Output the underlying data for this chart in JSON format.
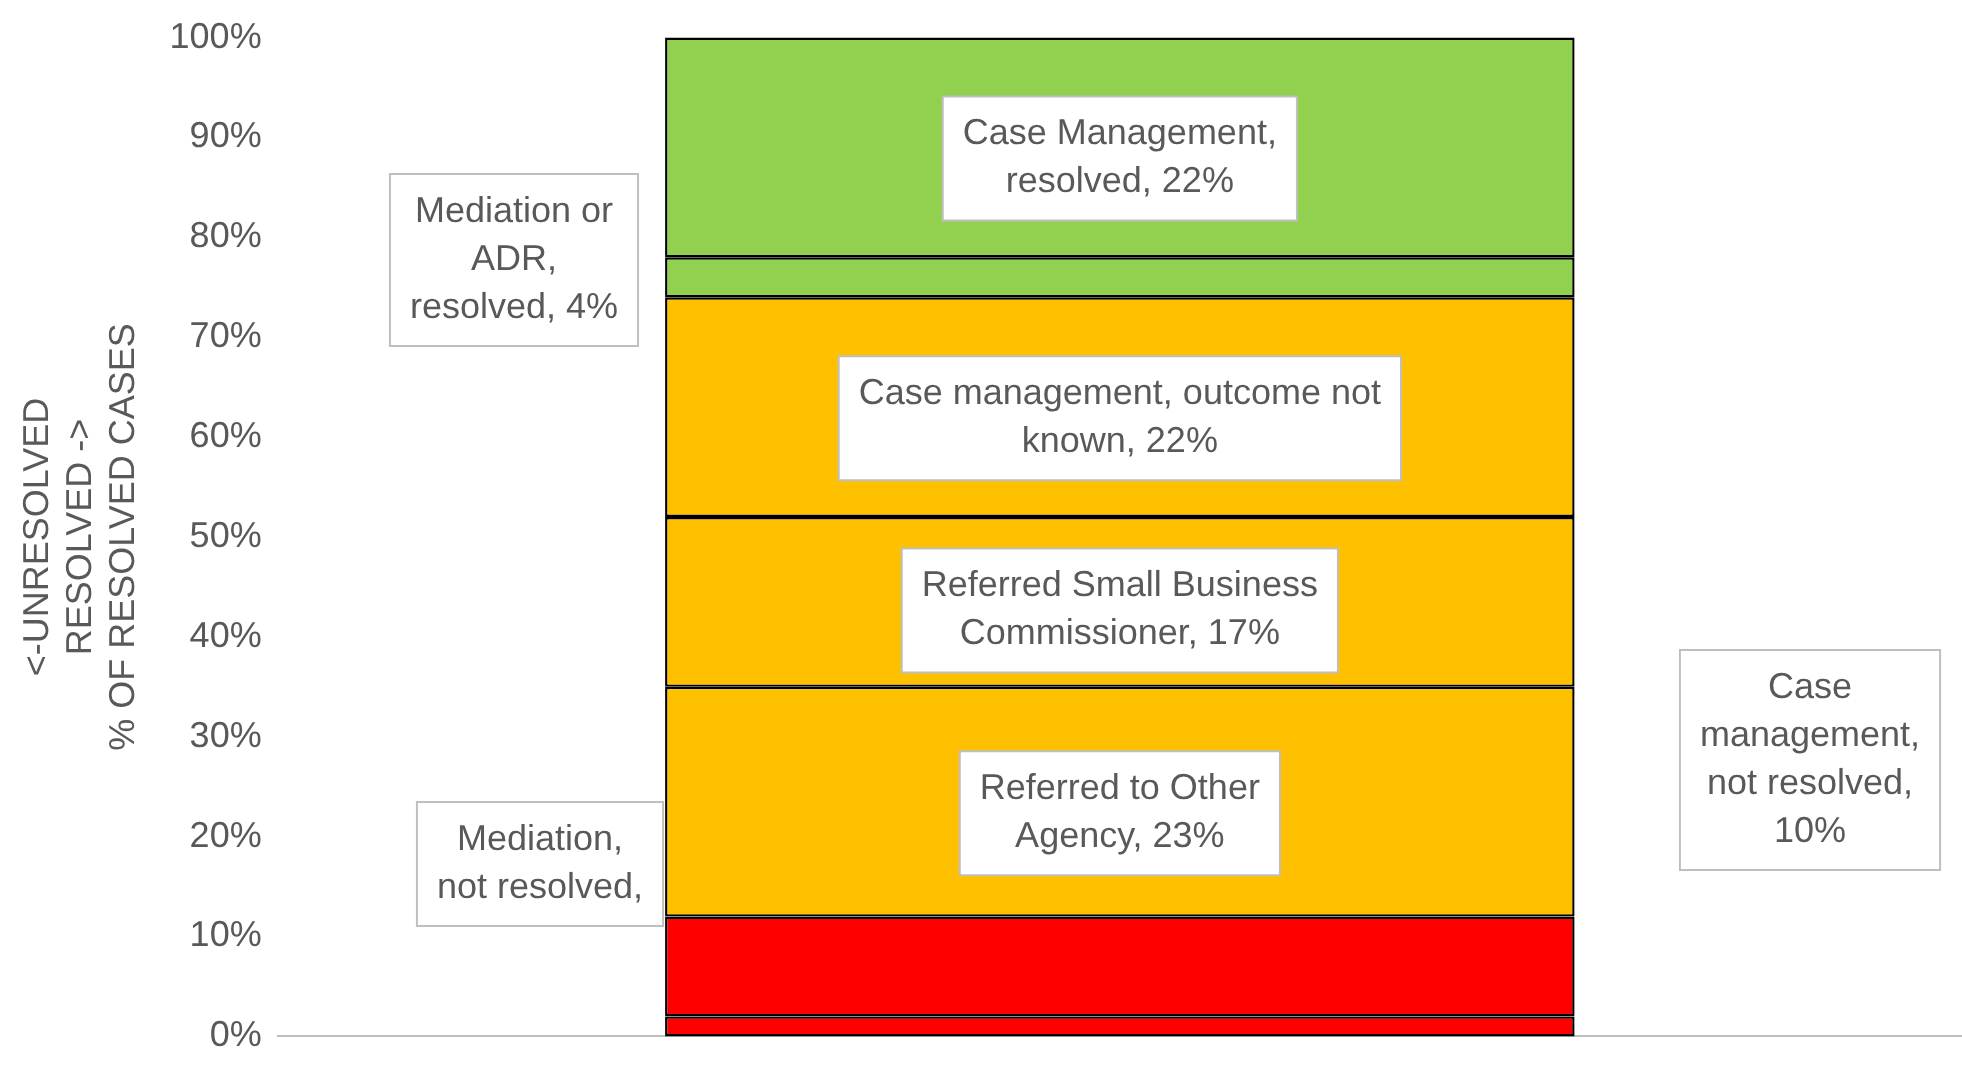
{
  "chart_data": {
    "type": "bar",
    "stacked": true,
    "categories": [
      null
    ],
    "ylabel": "<-UNRESOLVED\nRESOLVED ->\n% OF RESOLVED CASES",
    "series": [
      {
        "color": "#ff0000",
        "values": [
          2
        ]
      },
      {
        "color": "#ff0000",
        "values": [
          10
        ]
      },
      {
        "color": "#ffc000",
        "values": [
          23
        ],
        "value_labels": [
          "Referred to Other Agency, 23%"
        ]
      },
      {
        "color": "#ffc000",
        "values": [
          17
        ],
        "value_labels": [
          "Referred Small Business Commissioner, 17%"
        ]
      },
      {
        "color": "#ffc000",
        "values": [
          22
        ],
        "value_labels": [
          "Case management, outcome not known, 22%"
        ]
      },
      {
        "color": "#92d050",
        "values": [
          4
        ]
      },
      {
        "color": "#92d050",
        "values": [
          22
        ],
        "value_labels": [
          "Case Management, resolved, 22%"
        ]
      }
    ],
    "ylim": [
      0,
      100
    ],
    "yticks": [
      {
        "value": 0,
        "label": "0%"
      },
      {
        "value": 10,
        "label": "10%"
      },
      {
        "value": 20,
        "label": "20%"
      },
      {
        "value": 30,
        "label": "30%"
      },
      {
        "value": 40,
        "label": "40%"
      },
      {
        "value": 50,
        "label": "50%"
      },
      {
        "value": 60,
        "label": "60%"
      },
      {
        "value": 70,
        "label": "70%"
      },
      {
        "value": 80,
        "label": "80%"
      },
      {
        "value": 90,
        "label": "90%"
      },
      {
        "value": 100,
        "label": "100%"
      }
    ],
    "tick_labels": "y",
    "grid": false,
    "legend": false,
    "annotations": [
      "Mediation or ADR, resolved, 4%",
      "Case management, not resolved, 10%",
      "Mediation, not resolved,"
    ]
  }
}
